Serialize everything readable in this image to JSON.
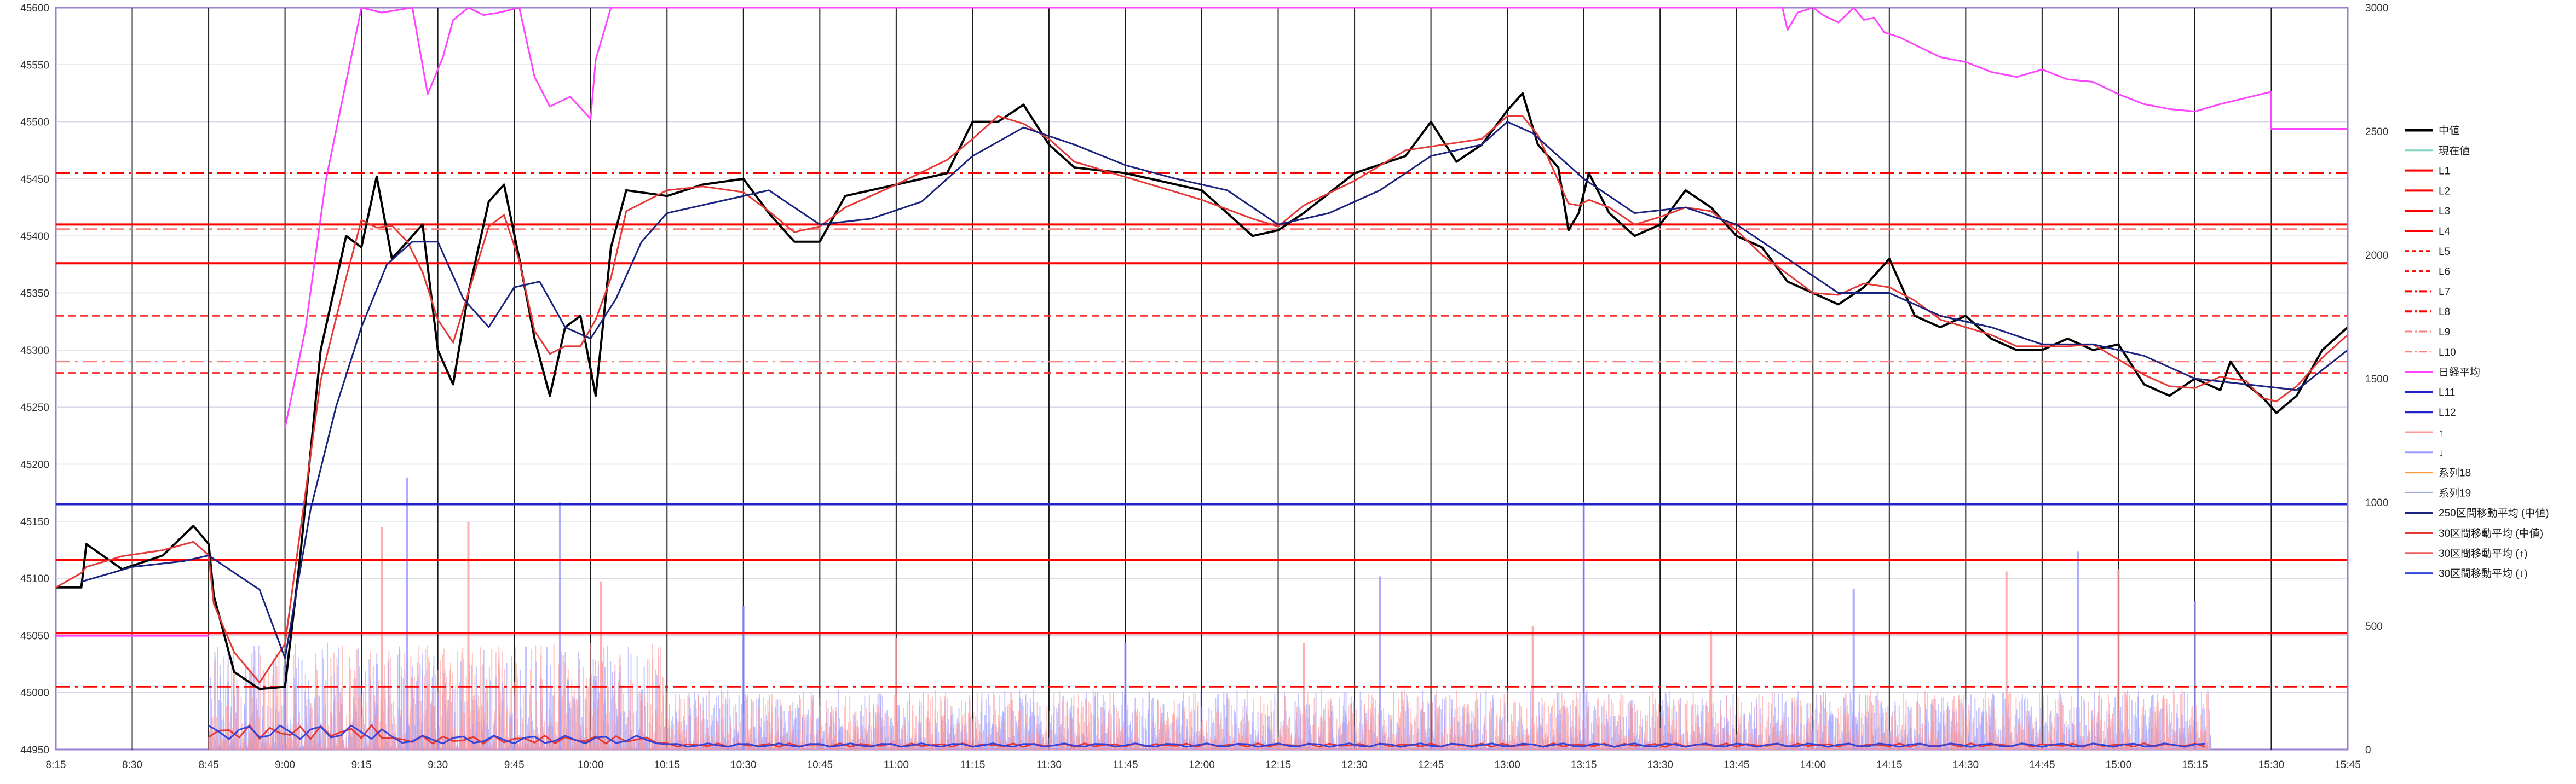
{
  "chart_data": {
    "type": "line",
    "title": "",
    "xlabel": "",
    "ylabel": "",
    "x_ticks": [
      "8:15",
      "8:30",
      "8:45",
      "9:00",
      "9:15",
      "9:30",
      "9:45",
      "10:00",
      "10:15",
      "10:30",
      "10:45",
      "11:00",
      "11:15",
      "11:30",
      "11:45",
      "12:00",
      "12:15",
      "12:30",
      "12:45",
      "13:00",
      "13:15",
      "13:30",
      "13:45",
      "14:00",
      "14:15",
      "14:30",
      "14:45",
      "15:00",
      "15:15",
      "15:30",
      "15:45"
    ],
    "xlim": [
      "8:15",
      "15:45"
    ],
    "ylim_left": [
      44950,
      45600
    ],
    "yticks_left": [
      44950,
      45000,
      45050,
      45100,
      45150,
      45200,
      45250,
      45300,
      45350,
      45400,
      45450,
      45500,
      45550,
      45600
    ],
    "ylim_right": [
      0,
      3000
    ],
    "yticks_right": [
      0,
      500,
      1000,
      1500,
      2000,
      2500,
      3000
    ],
    "grid": "horizontal and vertical",
    "legend_position": "right",
    "legend": [
      {
        "label": "中値",
        "color": "#000000",
        "style": "solid",
        "width": 5
      },
      {
        "label": "現在値",
        "color": "#7fd3c0",
        "style": "solid",
        "width": 3
      },
      {
        "label": "L1",
        "color": "#ff0000",
        "style": "solid",
        "width": 4
      },
      {
        "label": "L2",
        "color": "#ff0000",
        "style": "solid",
        "width": 4
      },
      {
        "label": "L3",
        "color": "#ff0000",
        "style": "solid",
        "width": 4
      },
      {
        "label": "L4",
        "color": "#ff0000",
        "style": "solid",
        "width": 4
      },
      {
        "label": "L5",
        "color": "#ff0000",
        "style": "dash",
        "width": 3
      },
      {
        "label": "L6",
        "color": "#ff0000",
        "style": "dash",
        "width": 3
      },
      {
        "label": "L7",
        "color": "#ff0000",
        "style": "dashdot",
        "width": 4
      },
      {
        "label": "L8",
        "color": "#ff0000",
        "style": "dashdot",
        "width": 4
      },
      {
        "label": "L9",
        "color": "#ff7f7f",
        "style": "dashdot",
        "width": 3
      },
      {
        "label": "L10",
        "color": "#ff7f7f",
        "style": "dashdot",
        "width": 3
      },
      {
        "label": "日経平均",
        "color": "#ff44ff",
        "style": "solid",
        "width": 3
      },
      {
        "label": "L11",
        "color": "#2222cc",
        "style": "solid",
        "width": 4
      },
      {
        "label": "L12",
        "color": "#2222cc",
        "style": "solid",
        "width": 4
      },
      {
        "label": "↑",
        "color": "#ff9999",
        "style": "solid",
        "width": 3
      },
      {
        "label": "↓",
        "color": "#9999ff",
        "style": "solid",
        "width": 3
      },
      {
        "label": "系列18",
        "color": "#ff9933",
        "style": "solid",
        "width": 3
      },
      {
        "label": "系列19",
        "color": "#9fa8d8",
        "style": "solid",
        "width": 3
      },
      {
        "label": "250区間移動平均 (中値)",
        "color": "#1a237e",
        "style": "solid",
        "width": 4
      },
      {
        "label": "30区間移動平均 (中値)",
        "color": "#e53935",
        "style": "solid",
        "width": 4
      },
      {
        "label": "30区間移動平均 (↑)",
        "color": "#f06060",
        "style": "solid",
        "width": 3
      },
      {
        "label": "30区間移動平均 (↓)",
        "color": "#3344dd",
        "style": "solid",
        "width": 3
      }
    ],
    "horizontal_levels": [
      {
        "name": "L-solid-1",
        "y": 45410,
        "color": "#ff0000",
        "style": "solid"
      },
      {
        "name": "L-solid-2",
        "y": 45376,
        "color": "#ff0000",
        "style": "solid"
      },
      {
        "name": "L-solid-3",
        "y": 45116,
        "color": "#ff0000",
        "style": "solid"
      },
      {
        "name": "L-solid-4",
        "y": 45052,
        "color": "#ff0000",
        "style": "solid"
      },
      {
        "name": "L-dashdot-1",
        "y": 45455,
        "color": "#ff0000",
        "style": "dashdot"
      },
      {
        "name": "L-dashdot-2",
        "y": 45005,
        "color": "#ff0000",
        "style": "dashdot"
      },
      {
        "name": "L-dash-1",
        "y": 45330,
        "color": "#ff3333",
        "style": "dash"
      },
      {
        "name": "L-dash-2",
        "y": 45280,
        "color": "#ff3333",
        "style": "dash"
      },
      {
        "name": "L-dashdot-3",
        "y": 45406,
        "color": "#ff7f7f",
        "style": "dashdot"
      },
      {
        "name": "L-dashdot-4",
        "y": 45290,
        "color": "#ff7f7f",
        "style": "dashdot"
      },
      {
        "name": "L-blue-1",
        "y": 45165,
        "color": "#2222cc",
        "style": "solid"
      }
    ],
    "series": [
      {
        "name": "中値",
        "color": "#000000",
        "x": [
          "8:15",
          "8:20",
          "8:21",
          "8:28",
          "8:36",
          "8:42",
          "8:45",
          "8:46",
          "8:50",
          "8:55",
          "9:00",
          "9:03",
          "9:07",
          "9:12",
          "9:15",
          "9:18",
          "9:21",
          "9:24",
          "9:27",
          "9:30",
          "9:33",
          "9:36",
          "9:40",
          "9:43",
          "9:46",
          "9:49",
          "9:52",
          "9:55",
          "9:58",
          "10:01",
          "10:04",
          "10:07",
          "10:15",
          "10:22",
          "10:30",
          "10:35",
          "10:40",
          "10:45",
          "10:50",
          "11:00",
          "11:10",
          "11:15",
          "11:20",
          "11:25",
          "11:30",
          "11:35",
          "11:45",
          "12:00",
          "12:10",
          "12:15",
          "12:20",
          "12:30",
          "12:40",
          "12:45",
          "12:50",
          "12:55",
          "13:00",
          "13:03",
          "13:06",
          "13:10",
          "13:12",
          "13:14",
          "13:16",
          "13:20",
          "13:25",
          "13:30",
          "13:35",
          "13:40",
          "13:45",
          "13:50",
          "13:55",
          "14:00",
          "14:05",
          "14:10",
          "14:15",
          "14:20",
          "14:25",
          "14:30",
          "14:35",
          "14:40",
          "14:45",
          "14:50",
          "14:55",
          "15:00",
          "15:05",
          "15:10",
          "15:15",
          "15:20",
          "15:22",
          "15:25",
          "15:28",
          "15:31",
          "15:35",
          "15:40",
          "15:45"
        ],
        "y": [
          45092,
          45092,
          45130,
          45108,
          45120,
          45146,
          45130,
          45085,
          45018,
          45003,
          45005,
          45120,
          45300,
          45400,
          45390,
          45452,
          45380,
          45395,
          45410,
          45300,
          45270,
          45350,
          45430,
          45445,
          45380,
          45310,
          45260,
          45320,
          45330,
          45260,
          45390,
          45440,
          45435,
          45445,
          45450,
          45420,
          45395,
          45395,
          45435,
          45445,
          45455,
          45500,
          45500,
          45515,
          45480,
          45460,
          45455,
          45440,
          45400,
          45405,
          45420,
          45455,
          45470,
          45500,
          45465,
          45480,
          45510,
          45525,
          45480,
          45460,
          45405,
          45420,
          45455,
          45420,
          45400,
          45410,
          45440,
          45425,
          45400,
          45390,
          45360,
          45350,
          45340,
          45355,
          45380,
          45330,
          45320,
          45330,
          45310,
          45300,
          45300,
          45310,
          45300,
          45305,
          45270,
          45260,
          45275,
          45265,
          45290,
          45270,
          45260,
          45245,
          45260,
          45300,
          45320
        ]
      },
      {
        "name": "250区間移動平均 (中値)",
        "color": "#1a237e",
        "x": [
          "8:20",
          "8:30",
          "8:40",
          "8:45",
          "8:55",
          "9:00",
          "9:05",
          "9:10",
          "9:15",
          "9:20",
          "9:25",
          "9:30",
          "9:35",
          "9:40",
          "9:45",
          "9:50",
          "9:55",
          "10:00",
          "10:05",
          "10:10",
          "10:15",
          "10:25",
          "10:35",
          "10:45",
          "10:55",
          "11:05",
          "11:15",
          "11:25",
          "11:35",
          "11:45",
          "11:55",
          "12:05",
          "12:15",
          "12:25",
          "12:35",
          "12:45",
          "12:55",
          "13:00",
          "13:05",
          "13:15",
          "13:25",
          "13:35",
          "13:45",
          "13:55",
          "14:05",
          "14:15",
          "14:25",
          "14:35",
          "14:45",
          "14:55",
          "15:05",
          "15:15",
          "15:25",
          "15:35",
          "15:45"
        ],
        "y": [
          45097,
          45110,
          45115,
          45120,
          45090,
          45030,
          45160,
          45250,
          45320,
          45375,
          45395,
          45395,
          45345,
          45320,
          45355,
          45360,
          45320,
          45310,
          45345,
          45395,
          45420,
          45430,
          45440,
          45410,
          45415,
          45430,
          45470,
          45495,
          45480,
          45462,
          45450,
          45440,
          45410,
          45420,
          45440,
          45470,
          45480,
          45500,
          45490,
          45450,
          45420,
          45425,
          45410,
          45380,
          45350,
          45350,
          45330,
          45320,
          45305,
          45305,
          45295,
          45275,
          45270,
          45265,
          45300
        ]
      },
      {
        "name": "日経平均",
        "color": "#ff44ff",
        "right_axis": true,
        "x": [
          "8:15",
          "8:45",
          "8:45",
          "8:58",
          "9:00",
          "9:04",
          "9:08",
          "9:12",
          "9:15",
          "9:19",
          "9:25",
          "9:28",
          "9:31",
          "9:33",
          "9:36",
          "9:39",
          "9:42",
          "9:46",
          "9:49",
          "9:52",
          "9:56",
          "10:00",
          "10:01",
          "10:04",
          "13:54",
          "13:55",
          "13:57",
          "14:00",
          "14:02",
          "14:05",
          "14:08",
          "14:10",
          "14:12",
          "14:14",
          "14:17",
          "14:20",
          "14:25",
          "14:30",
          "14:35",
          "14:40",
          "14:45",
          "14:50",
          "14:55",
          "15:00",
          "15:05",
          "15:10",
          "15:15",
          "15:20",
          "15:30",
          "15:30",
          "15:45"
        ],
        "y": [
          460,
          460,
          -1,
          -1,
          1300,
          1700,
          2300,
          2700,
          3000,
          2980,
          3000,
          2650,
          2800,
          2950,
          3000,
          2970,
          2980,
          3000,
          2720,
          2600,
          2640,
          2550,
          2790,
          3000,
          3000,
          2910,
          2980,
          3000,
          2970,
          2940,
          3000,
          2950,
          2960,
          2900,
          2880,
          2850,
          2800,
          2780,
          2740,
          2720,
          2750,
          2710,
          2700,
          2650,
          2610,
          2590,
          2580,
          2610,
          2660,
          2510,
          2510
        ]
      }
    ],
    "volume": {
      "up_color": "#ff9999",
      "down_color": "#9999ff",
      "note": "sold-buy volume bars on right axis",
      "spikes": [
        {
          "x": "9:19",
          "v": 900
        },
        {
          "x": "9:24",
          "v": 1100
        },
        {
          "x": "9:36",
          "v": 920
        },
        {
          "x": "9:54",
          "v": 1000
        },
        {
          "x": "10:02",
          "v": 680
        },
        {
          "x": "10:30",
          "v": 580
        },
        {
          "x": "11:00",
          "v": 450
        },
        {
          "x": "11:45",
          "v": 430
        },
        {
          "x": "12:20",
          "v": 430
        },
        {
          "x": "12:35",
          "v": 700
        },
        {
          "x": "13:05",
          "v": 500
        },
        {
          "x": "13:15",
          "v": 1000
        },
        {
          "x": "13:40",
          "v": 480
        },
        {
          "x": "14:08",
          "v": 650
        },
        {
          "x": "14:38",
          "v": 720
        },
        {
          "x": "14:52",
          "v": 800
        },
        {
          "x": "15:00",
          "v": 730
        },
        {
          "x": "15:15",
          "v": 600
        }
      ]
    }
  }
}
